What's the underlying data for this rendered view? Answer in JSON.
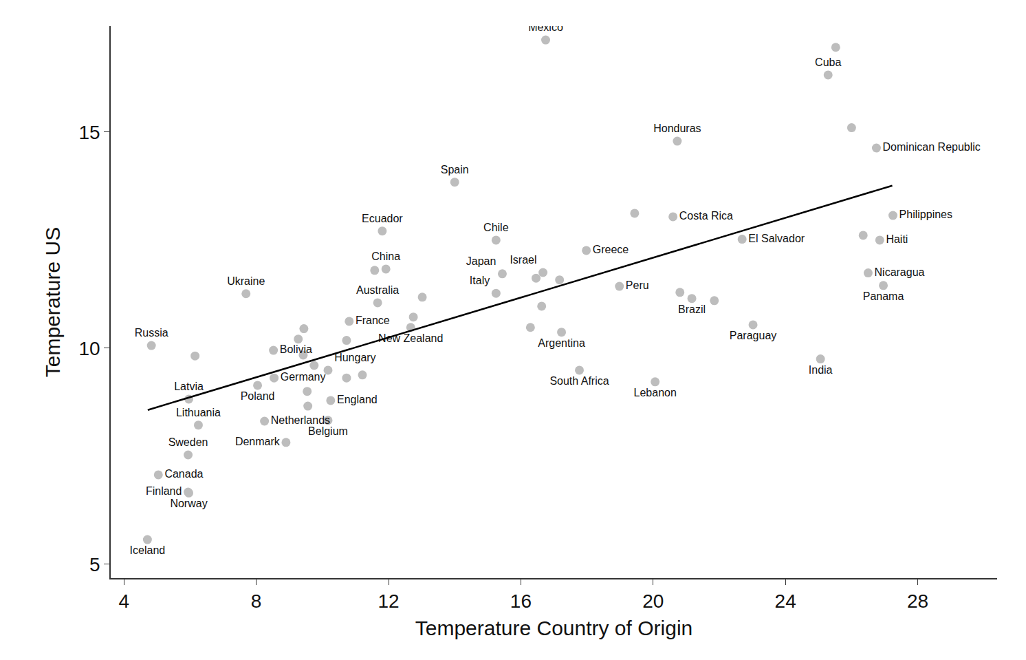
{
  "chart_data": {
    "type": "scatter",
    "x_label": "Temperature Country of Origin",
    "y_label": "Temperature US",
    "xlim": [
      3.6,
      30.4
    ],
    "ylim": [
      4.68,
      17.45
    ],
    "xticks": [
      4,
      8,
      12,
      16,
      20,
      24,
      28
    ],
    "yticks": [
      5,
      10,
      15
    ],
    "grid": false,
    "series": [
      {
        "type": "scatter",
        "marker": "circle",
        "color": "#bdbdbd",
        "labels": [
          "Mexico",
          null,
          "Cuba",
          null,
          "Dominican Republic",
          "Honduras",
          "Spain",
          "Ecuador",
          "Chile",
          "China",
          null,
          "Australia",
          "Japan",
          "Italy",
          "Israel",
          null,
          null,
          null,
          null,
          "Greece",
          null,
          "Costa Rica",
          "El Salvador",
          "Philippines",
          "Haiti",
          null,
          "Nicaragua",
          "Panama",
          "Peru",
          "Brazil",
          null,
          null,
          "Paraguay",
          "India",
          "Lebanon",
          "South Africa",
          "Argentina",
          "Ukraine",
          "Russia",
          null,
          "Latvia",
          "Lithuania",
          "Sweden",
          "Canada",
          "Finland",
          "Norway",
          "Iceland",
          "Bolivia",
          null,
          null,
          null,
          null,
          "Hungary",
          null,
          null,
          "Germany",
          null,
          null,
          "England",
          "Poland",
          "Netherlands",
          "Belgium",
          "Denmark",
          "France",
          null,
          "New Zealand",
          null,
          null
        ],
        "x": [
          16.75,
          25.52,
          25.29,
          26.0,
          26.75,
          20.73,
          14.0,
          11.81,
          15.25,
          11.92,
          11.58,
          11.67,
          15.44,
          15.25,
          16.67,
          16.46,
          17.17,
          16.63,
          16.29,
          17.98,
          19.44,
          20.6,
          22.69,
          27.25,
          26.85,
          26.35,
          26.5,
          26.96,
          18.98,
          21.17,
          20.81,
          21.85,
          23.02,
          25.06,
          20.06,
          17.77,
          17.23,
          7.69,
          4.83,
          6.15,
          5.96,
          6.25,
          5.94,
          5.04,
          5.94,
          5.96,
          4.71,
          8.52,
          9.44,
          9.27,
          9.42,
          9.75,
          10.17,
          10.73,
          11.21,
          8.54,
          9.54,
          9.56,
          10.25,
          8.04,
          8.25,
          10.17,
          8.9,
          10.81,
          10.73,
          12.67,
          12.75,
          13.02
        ],
        "values": [
          17.13,
          16.96,
          16.32,
          15.1,
          14.63,
          14.79,
          13.84,
          12.71,
          12.5,
          11.83,
          11.8,
          11.05,
          11.72,
          11.27,
          11.75,
          11.62,
          11.58,
          10.97,
          10.48,
          12.26,
          13.12,
          13.04,
          12.52,
          13.07,
          12.5,
          12.61,
          11.74,
          11.45,
          11.43,
          11.15,
          11.29,
          11.1,
          10.54,
          9.75,
          9.22,
          9.49,
          10.37,
          11.26,
          10.06,
          9.82,
          8.82,
          8.22,
          7.53,
          7.07,
          6.67,
          6.65,
          5.57,
          9.95,
          10.45,
          10.21,
          9.84,
          9.6,
          9.49,
          9.31,
          9.38,
          9.31,
          9.0,
          8.66,
          8.79,
          9.14,
          8.31,
          8.33,
          7.82,
          10.62,
          10.18,
          10.48,
          10.72,
          11.18
        ]
      },
      {
        "type": "line",
        "line_style": "solid",
        "color": "#000000",
        "x": [
          4.72,
          27.23
        ],
        "values": [
          8.57,
          13.76
        ]
      }
    ]
  }
}
